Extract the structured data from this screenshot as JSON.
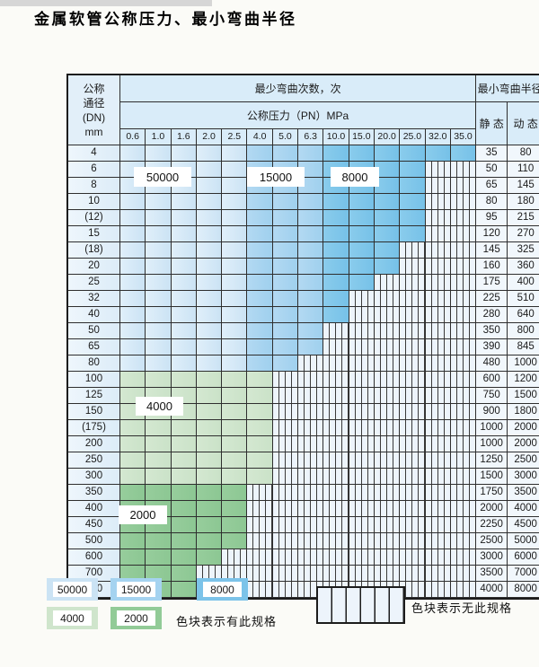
{
  "page": {
    "title": "金属软管公称压力、最小弯曲半径",
    "background": "#fbfbf7"
  },
  "table": {
    "header": {
      "dn_lines": [
        "公称",
        "通径",
        "(DN)",
        "mm"
      ],
      "cycles_title": "最少弯曲次数，次",
      "pressure_title": "公称压力（PN）MPa",
      "radius_title": "最小弯曲半径",
      "static_label": "静 态",
      "dynamic_label": "动 态"
    }
  },
  "chart_data": {
    "type": "heatmap",
    "note": "color-coded specification matrix: colored cell = spec exists with given minimum bend cycles; striped cell = no such spec",
    "pressure_columns": [
      "0.6",
      "1.0",
      "1.6",
      "2.0",
      "2.5",
      "4.0",
      "5.0",
      "6.3",
      "10.0",
      "15.0",
      "20.0",
      "25.0",
      "32.0",
      "35.0"
    ],
    "cycle_bands_blue": [
      {
        "pn_from": "0.6",
        "pn_to": "2.5",
        "cycles": 50000
      },
      {
        "pn_from": "4.0",
        "pn_to": "6.3",
        "cycles": 15000
      },
      {
        "pn_from": "10.0",
        "pn_to": "35.0",
        "cycles": 8000
      }
    ],
    "rows": [
      {
        "dn": "4",
        "max_pn": "35.0",
        "palette": "blue",
        "static": "35",
        "dynamic": "80"
      },
      {
        "dn": "6",
        "max_pn": "25.0",
        "palette": "blue",
        "static": "50",
        "dynamic": "110"
      },
      {
        "dn": "8",
        "max_pn": "25.0",
        "palette": "blue",
        "static": "65",
        "dynamic": "145"
      },
      {
        "dn": "10",
        "max_pn": "25.0",
        "palette": "blue",
        "static": "80",
        "dynamic": "180"
      },
      {
        "dn": "(12)",
        "max_pn": "25.0",
        "palette": "blue",
        "static": "95",
        "dynamic": "215"
      },
      {
        "dn": "15",
        "max_pn": "25.0",
        "palette": "blue",
        "static": "120",
        "dynamic": "270"
      },
      {
        "dn": "(18)",
        "max_pn": "20.0",
        "palette": "blue",
        "static": "145",
        "dynamic": "325"
      },
      {
        "dn": "20",
        "max_pn": "20.0",
        "palette": "blue",
        "static": "160",
        "dynamic": "360"
      },
      {
        "dn": "25",
        "max_pn": "15.0",
        "palette": "blue",
        "static": "175",
        "dynamic": "400"
      },
      {
        "dn": "32",
        "max_pn": "10.0",
        "palette": "blue",
        "static": "225",
        "dynamic": "510"
      },
      {
        "dn": "40",
        "max_pn": "10.0",
        "palette": "blue",
        "static": "280",
        "dynamic": "640"
      },
      {
        "dn": "50",
        "max_pn": "6.3",
        "palette": "blue",
        "static": "350",
        "dynamic": "800"
      },
      {
        "dn": "65",
        "max_pn": "6.3",
        "palette": "blue",
        "static": "390",
        "dynamic": "845"
      },
      {
        "dn": "80",
        "max_pn": "5.0",
        "palette": "blue",
        "static": "480",
        "dynamic": "1000"
      },
      {
        "dn": "100",
        "max_pn": "4.0",
        "palette": "green-4000",
        "static": "600",
        "dynamic": "1200"
      },
      {
        "dn": "125",
        "max_pn": "4.0",
        "palette": "green-4000",
        "static": "750",
        "dynamic": "1500"
      },
      {
        "dn": "150",
        "max_pn": "4.0",
        "palette": "green-4000",
        "static": "900",
        "dynamic": "1800"
      },
      {
        "dn": "(175)",
        "max_pn": "4.0",
        "palette": "green-4000",
        "static": "1000",
        "dynamic": "2000"
      },
      {
        "dn": "200",
        "max_pn": "4.0",
        "palette": "green-4000",
        "static": "1000",
        "dynamic": "2000"
      },
      {
        "dn": "250",
        "max_pn": "4.0",
        "palette": "green-4000",
        "static": "1250",
        "dynamic": "2500"
      },
      {
        "dn": "300",
        "max_pn": "4.0",
        "palette": "green-4000",
        "static": "1500",
        "dynamic": "3000"
      },
      {
        "dn": "350",
        "max_pn": "2.5",
        "palette": "green-2000",
        "static": "1750",
        "dynamic": "3500"
      },
      {
        "dn": "400",
        "max_pn": "2.5",
        "palette": "green-2000",
        "static": "2000",
        "dynamic": "4000"
      },
      {
        "dn": "450",
        "max_pn": "2.5",
        "palette": "green-2000",
        "static": "2250",
        "dynamic": "4500"
      },
      {
        "dn": "500",
        "max_pn": "2.5",
        "palette": "green-2000",
        "static": "2500",
        "dynamic": "5000"
      },
      {
        "dn": "600",
        "max_pn": "2.0",
        "palette": "green-2000",
        "static": "3000",
        "dynamic": "6000"
      },
      {
        "dn": "700",
        "max_pn": "1.6",
        "palette": "green-2000",
        "static": "3500",
        "dynamic": "7000"
      },
      {
        "dn": "800",
        "max_pn": "1.6",
        "palette": "green-2000",
        "static": "4000",
        "dynamic": "8000"
      }
    ]
  },
  "overlays": {
    "v50000": "50000",
    "v15000": "15000",
    "v8000": "8000",
    "v4000": "4000",
    "v2000": "2000"
  },
  "legend": {
    "swatches": [
      {
        "label": "50000",
        "color": "#cbe3f4"
      },
      {
        "label": "15000",
        "color": "#a5d3f0"
      },
      {
        "label": "8000",
        "color": "#7cc3e9"
      },
      {
        "label": "4000",
        "color": "#cfe5cc"
      },
      {
        "label": "2000",
        "color": "#92cb97"
      }
    ],
    "has_spec_text": "色块表示有此规格",
    "no_spec_text": "色块表示无此规格"
  },
  "colors": {
    "cycles_50000": "#cbe3f4",
    "cycles_15000": "#a5d3f0",
    "cycles_8000": "#7cc3e9",
    "cycles_4000": "#cfe5cc",
    "cycles_2000": "#92cb97",
    "no_spec_bg": "#edf4fb",
    "grid_line": "#2e2e2e",
    "header_bg": "#d9ecf9"
  }
}
